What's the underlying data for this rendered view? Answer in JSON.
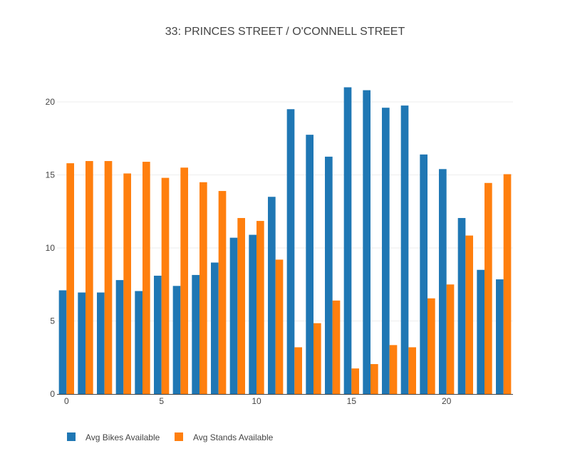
{
  "chart_data": {
    "type": "bar",
    "title": "33: PRINCES STREET / O'CONNELL STREET",
    "xlabel": "",
    "ylabel": "",
    "x": [
      0,
      1,
      2,
      3,
      4,
      5,
      6,
      7,
      8,
      9,
      10,
      11,
      12,
      13,
      14,
      15,
      16,
      17,
      18,
      19,
      20,
      21,
      22,
      23
    ],
    "x_ticks": [
      "0",
      "5",
      "10",
      "15",
      "20"
    ],
    "y_ticks": [
      "0",
      "5",
      "10",
      "15",
      "20"
    ],
    "ylim": [
      0,
      21.5
    ],
    "grid": true,
    "legend_position": "bottom-left",
    "series": [
      {
        "name": "Avg Bikes Available",
        "color": "#1f77b4",
        "values": [
          7.1,
          6.95,
          6.95,
          7.8,
          7.05,
          8.1,
          7.4,
          8.15,
          9.0,
          10.7,
          10.9,
          13.5,
          19.5,
          17.75,
          16.25,
          21.0,
          20.8,
          19.6,
          19.75,
          16.4,
          15.4,
          12.05,
          8.5,
          7.85
        ]
      },
      {
        "name": "Avg Stands Available",
        "color": "#ff7f0e",
        "values": [
          15.8,
          15.95,
          15.95,
          15.1,
          15.9,
          14.8,
          15.5,
          14.5,
          13.9,
          12.05,
          11.85,
          9.2,
          3.2,
          4.85,
          6.4,
          1.75,
          2.05,
          3.35,
          3.2,
          6.55,
          7.5,
          10.85,
          14.45,
          15.05
        ]
      }
    ]
  }
}
